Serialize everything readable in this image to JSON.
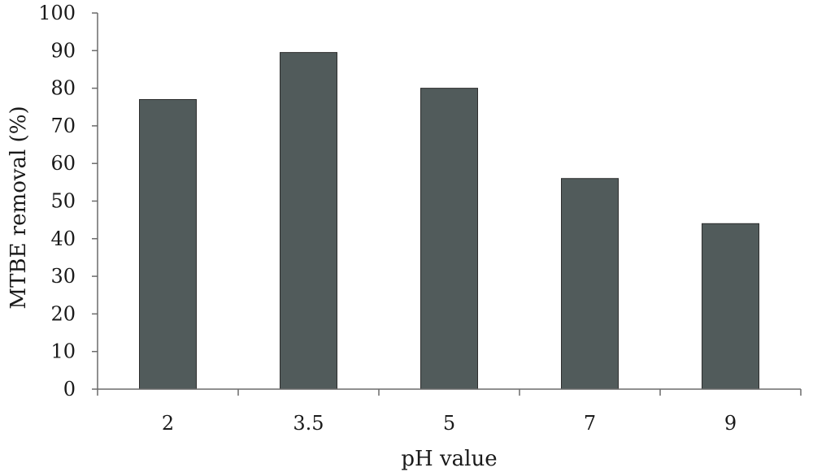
{
  "chart_data": {
    "type": "bar",
    "title": "",
    "xlabel": "pH value",
    "ylabel": "MTBE removal (%)",
    "categories": [
      "2",
      "3.5",
      "5",
      "7",
      "9"
    ],
    "values": [
      77,
      89.5,
      80,
      56,
      44
    ],
    "ylim": [
      0,
      100
    ],
    "yticks": [
      "0",
      "10",
      "20",
      "30",
      "40",
      "50",
      "60",
      "70",
      "80",
      "90",
      "100"
    ],
    "grid": false,
    "legend": "none",
    "bar_color": "#515b5b"
  }
}
